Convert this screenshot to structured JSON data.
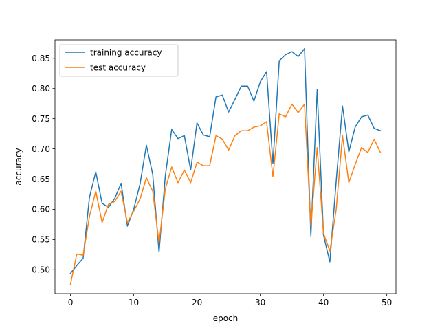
{
  "chart_data": {
    "type": "line",
    "title": "",
    "xlabel": "epoch",
    "ylabel": "accuracy",
    "xlim": [
      -2.45,
      51.45
    ],
    "ylim": [
      0.4605,
      0.8805
    ],
    "xticks": [
      0,
      10,
      20,
      30,
      40,
      50
    ],
    "yticks": [
      0.5,
      0.55,
      0.6,
      0.65,
      0.7,
      0.75,
      0.8,
      0.85
    ],
    "xtick_labels": [
      "0",
      "10",
      "20",
      "30",
      "40",
      "50"
    ],
    "ytick_labels": [
      "0.50",
      "0.55",
      "0.60",
      "0.65",
      "0.70",
      "0.75",
      "0.80",
      "0.85"
    ],
    "grid": false,
    "legend_position": "top-left",
    "x": [
      0,
      1,
      2,
      3,
      4,
      5,
      6,
      7,
      8,
      9,
      10,
      11,
      12,
      13,
      14,
      15,
      16,
      17,
      18,
      19,
      20,
      21,
      22,
      23,
      24,
      25,
      26,
      27,
      28,
      29,
      30,
      31,
      32,
      33,
      34,
      35,
      36,
      37,
      38,
      39,
      40,
      41,
      42,
      43,
      44,
      45,
      46,
      47,
      48,
      49
    ],
    "series": [
      {
        "name": "training accuracy",
        "color": "#1f77b4",
        "values": [
          0.494,
          0.507,
          0.519,
          0.62,
          0.662,
          0.61,
          0.603,
          0.618,
          0.643,
          0.572,
          0.6,
          0.642,
          0.706,
          0.658,
          0.529,
          0.656,
          0.732,
          0.717,
          0.722,
          0.665,
          0.743,
          0.723,
          0.72,
          0.786,
          0.789,
          0.761,
          0.782,
          0.804,
          0.804,
          0.779,
          0.811,
          0.828,
          0.676,
          0.846,
          0.856,
          0.861,
          0.853,
          0.866,
          0.555,
          0.798,
          0.557,
          0.513,
          0.646,
          0.771,
          0.695,
          0.736,
          0.753,
          0.756,
          0.734,
          0.73
        ]
      },
      {
        "name": "test accuracy",
        "color": "#ff7f0e",
        "values": [
          0.476,
          0.526,
          0.524,
          0.588,
          0.63,
          0.578,
          0.608,
          0.613,
          0.63,
          0.578,
          0.597,
          0.617,
          0.652,
          0.63,
          0.544,
          0.634,
          0.67,
          0.644,
          0.665,
          0.644,
          0.678,
          0.672,
          0.672,
          0.722,
          0.716,
          0.698,
          0.722,
          0.73,
          0.73,
          0.736,
          0.738,
          0.745,
          0.654,
          0.758,
          0.753,
          0.774,
          0.76,
          0.774,
          0.572,
          0.702,
          0.56,
          0.531,
          0.599,
          0.722,
          0.644,
          0.674,
          0.702,
          0.694,
          0.716,
          0.694
        ]
      }
    ]
  }
}
